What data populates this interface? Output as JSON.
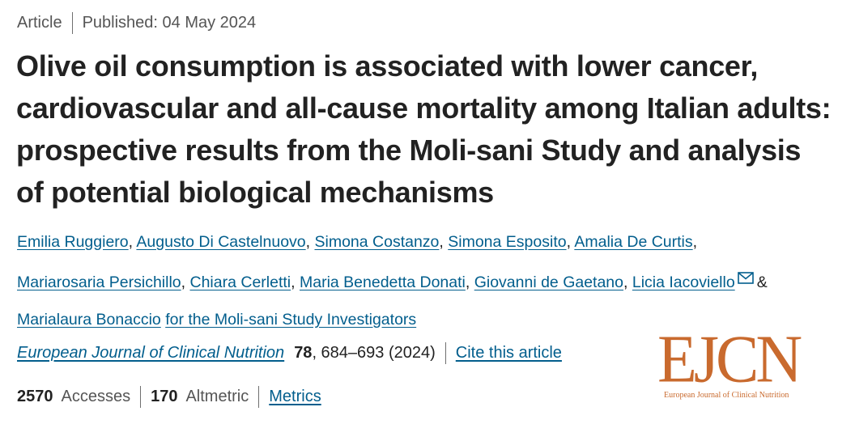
{
  "meta": {
    "type": "Article",
    "published": "Published: 04 May 2024"
  },
  "title": "Olive oil consumption is associated with lower cancer, cardiovascular and all-cause mortality among Italian adults: prospective results from the Moli-sani Study and analysis of potential biological mechanisms",
  "authors": [
    "Emilia Ruggiero",
    "Augusto Di Castelnuovo",
    "Simona Costanzo",
    "Simona Esposito",
    "Amalia De Curtis",
    "Mariarosaria Persichillo",
    "Chiara Cerletti",
    "Maria Benedetta Donati",
    "Giovanni de Gaetano",
    "Licia Iacoviello",
    "Marialaura Bonaccio",
    "for the Moli-sani Study Investigators"
  ],
  "separators": {
    "comma": ",",
    "ampersand": "&"
  },
  "icons": {
    "corresponding_author": "mail-icon"
  },
  "citation": {
    "journal": "European Journal of Clinical Nutrition",
    "volume": "78",
    "pages_year": ", 684–693 (2024)",
    "cite_link": "Cite this article"
  },
  "metrics": {
    "accesses_count": "2570",
    "accesses_label": "Accesses",
    "altmetric_count": "170",
    "altmetric_label": "Altmetric",
    "metrics_link": "Metrics"
  },
  "logo": {
    "text": "EJCN",
    "subtitle": "European Journal of Clinical Nutrition"
  },
  "colors": {
    "link": "#025e8d",
    "logo": "#c96a2e",
    "text": "#222222",
    "muted": "#555555"
  }
}
